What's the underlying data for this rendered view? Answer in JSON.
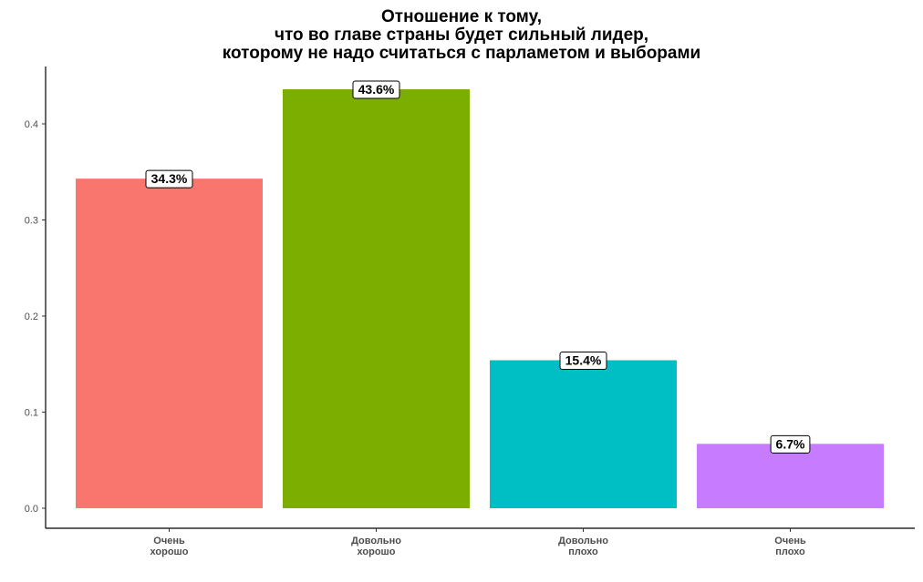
{
  "chart_data": {
    "type": "bar",
    "title_lines": [
      "Отношение к тому,",
      "что во главе страны будет сильный лидер,",
      "которому не надо считаться с парламетом и выборами"
    ],
    "categories": [
      [
        "Очень",
        "хорошо"
      ],
      [
        "Довольно",
        "хорошо"
      ],
      [
        "Довольно",
        "плохо"
      ],
      [
        "Очень",
        "плохо"
      ]
    ],
    "values": [
      0.343,
      0.436,
      0.154,
      0.067
    ],
    "data_labels": [
      "34.3%",
      "43.6%",
      "15.4%",
      "6.7%"
    ],
    "colors": [
      "#F8766D",
      "#7CAE00",
      "#00BFC4",
      "#C77CFF"
    ],
    "y_ticks": [
      "0.0",
      "0.1",
      "0.2",
      "0.3",
      "0.4"
    ],
    "y_tick_values": [
      0.0,
      0.1,
      0.2,
      0.3,
      0.4
    ],
    "xlabel": "",
    "ylabel": "",
    "grid": false,
    "legend": "none"
  }
}
